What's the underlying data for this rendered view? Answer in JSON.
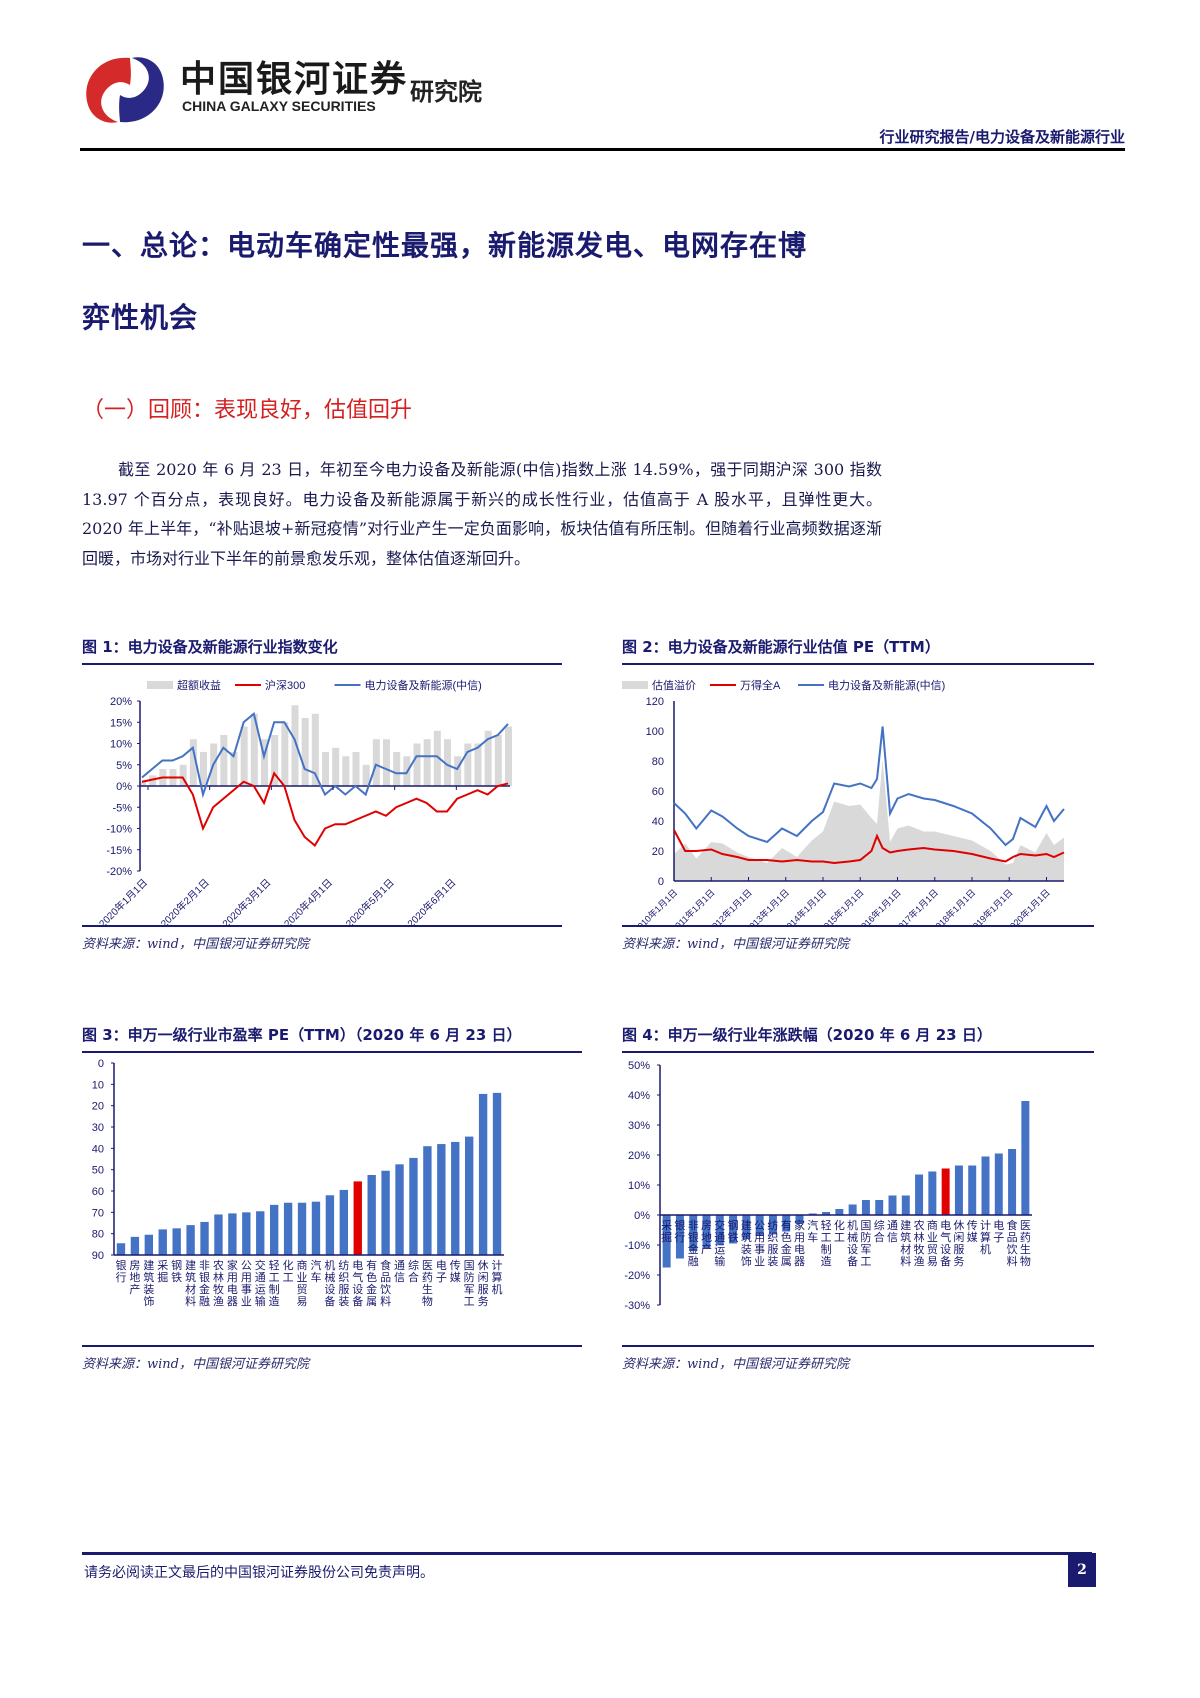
{
  "header": {
    "brand_cn": "中国银河证券",
    "brand_en": "CHINA GALAXY SECURITIES",
    "institute": "研究院",
    "report_type": "行业研究报告/电力设备及新能源行业"
  },
  "section": {
    "title_line1": "一、总论：电动车确定性最强，新能源发电、电网存在博",
    "title_line2": "弈性机会",
    "subtitle": "（一）回顾：表现良好，估值回升",
    "paragraph": "截至 2020 年 6 月 23 日，年初至今电力设备及新能源(中信)指数上涨 14.59%，强于同期沪深 300 指数 13.97 个百分点，表现良好。电力设备及新能源属于新兴的成长性行业，估值高于 A 股水平，且弹性更大。2020 年上半年，“补贴退坡+新冠疫情”对行业产生一定负面影响，板块估值有所压制。但随着行业高频数据逐渐回暖，市场对行业下半年的前景愈发乐观，整体估值逐渐回升。"
  },
  "figures": {
    "fig1": {
      "title": "图 1：电力设备及新能源行业指数变化",
      "source": "资料来源：wind，中国银河证券研究院"
    },
    "fig2": {
      "title": "图 2：电力设备及新能源行业估值 PE（TTM）",
      "source": "资料来源：wind，中国银河证券研究院"
    },
    "fig3": {
      "title": "图 3：申万一级行业市盈率 PE（TTM）（2020 年 6 月 23 日）",
      "source": "资料来源：wind，中国银河证券研究院"
    },
    "fig4": {
      "title": "图 4：申万一级行业年涨跌幅（2020 年 6 月 23 日）",
      "source": "资料来源：wind，中国银河证券研究院"
    }
  },
  "footer": {
    "disclaimer": "请务必阅读正文最后的中国银河证券股份公司免责声明。",
    "page": "2"
  },
  "colors": {
    "navy": "#1a1a6e",
    "red": "#e00000",
    "blue": "#4472c4",
    "gray": "#d9d9d9"
  },
  "chart_data": [
    {
      "type": "line",
      "title": "电力设备及新能源行业指数变化",
      "legend": [
        "超额收益",
        "沪深300",
        "电力设备及新能源(中信)"
      ],
      "legend_position": "top",
      "ylim": [
        -20,
        20
      ],
      "yticks": [
        "20%",
        "15%",
        "10%",
        "5%",
        "0%",
        "-5%",
        "-10%",
        "-15%",
        "-20%"
      ],
      "xticks": [
        "2020年1月1日",
        "2020年2月1日",
        "2020年3月1日",
        "2020年4月1日",
        "2020年5月1日",
        "2020年6月1日"
      ],
      "x": [
        "01-02",
        "01-07",
        "01-10",
        "01-15",
        "01-20",
        "01-23",
        "02-03",
        "02-05",
        "02-10",
        "02-14",
        "02-20",
        "02-25",
        "02-28",
        "03-03",
        "03-05",
        "03-10",
        "03-13",
        "03-17",
        "03-20",
        "03-24",
        "03-27",
        "03-31",
        "04-03",
        "04-09",
        "04-15",
        "04-20",
        "04-24",
        "04-30",
        "05-08",
        "05-15",
        "05-22",
        "05-29",
        "06-05",
        "06-10",
        "06-15",
        "06-19",
        "06-23"
      ],
      "series": [
        {
          "name": "电力设备及新能源(中信)",
          "values": [
            2,
            4,
            6,
            6,
            7,
            9,
            -2,
            5,
            9,
            7,
            15,
            17,
            7,
            15,
            15,
            11,
            4,
            3,
            -2,
            0,
            -2,
            0,
            -2,
            5,
            4,
            3,
            3,
            7,
            7,
            7,
            5,
            4,
            8,
            9,
            11,
            12,
            14.6
          ]
        },
        {
          "name": "沪深300",
          "values": [
            1,
            1.5,
            2,
            2,
            2,
            -2,
            -10,
            -5,
            -3,
            -1,
            1,
            0,
            -4,
            3,
            0,
            -8,
            -12,
            -14,
            -10,
            -9,
            -9,
            -8,
            -7,
            -6,
            -7,
            -5,
            -4,
            -3,
            -4,
            -6,
            -6,
            -3,
            -2,
            -1,
            -2,
            0,
            0.6
          ]
        },
        {
          "name": "超额收益",
          "values": [
            1,
            2.5,
            4,
            4,
            5,
            11,
            8,
            10,
            12,
            8,
            14,
            17,
            11,
            12,
            15,
            19,
            16,
            17,
            8,
            9,
            7,
            8,
            5,
            11,
            11,
            8,
            7,
            10,
            11,
            13,
            11,
            7,
            10,
            10,
            13,
            12,
            14
          ]
        }
      ]
    },
    {
      "type": "line",
      "title": "电力设备及新能源行业估值 PE（TTM）",
      "legend": [
        "估值溢价",
        "万得全A",
        "电力设备及新能源(中信)"
      ],
      "legend_position": "top",
      "ylim": [
        0,
        120
      ],
      "yticks": [
        0,
        20,
        40,
        60,
        80,
        100,
        120
      ],
      "xticks": [
        "2010年1月1日",
        "2011年1月1日",
        "2012年1月1日",
        "2013年1月1日",
        "2014年1月1日",
        "2015年1月1日",
        "2016年1月1日",
        "2017年1月1日",
        "2018年1月1日",
        "2019年1月1日",
        "2020年1月1日"
      ],
      "x": [
        2010.0,
        2010.3,
        2010.6,
        2011.0,
        2011.3,
        2011.7,
        2012.0,
        2012.5,
        2012.9,
        2013.3,
        2013.7,
        2014.0,
        2014.3,
        2014.7,
        2015.0,
        2015.3,
        2015.45,
        2015.6,
        2015.8,
        2016.0,
        2016.3,
        2016.7,
        2017.0,
        2017.5,
        2018.0,
        2018.5,
        2018.9,
        2019.1,
        2019.3,
        2019.7,
        2020.0,
        2020.2,
        2020.47
      ],
      "series": [
        {
          "name": "电力设备及新能源(中信)",
          "values": [
            52,
            45,
            35,
            47,
            43,
            35,
            30,
            26,
            35,
            30,
            40,
            46,
            65,
            63,
            65,
            62,
            68,
            103,
            45,
            55,
            58,
            55,
            54,
            50,
            45,
            35,
            24,
            28,
            42,
            36,
            50,
            40,
            48
          ]
        },
        {
          "name": "万得全A",
          "values": [
            34,
            20,
            20,
            21,
            18,
            16,
            14,
            14,
            13,
            14,
            13,
            13,
            12,
            13,
            14,
            20,
            30,
            22,
            19,
            20,
            21,
            22,
            21,
            20,
            18,
            15,
            13,
            16,
            18,
            17,
            18,
            16,
            19
          ]
        },
        {
          "name": "估值溢价",
          "values": [
            18,
            25,
            15,
            26,
            25,
            19,
            16,
            12,
            22,
            16,
            27,
            33,
            53,
            50,
            51,
            42,
            38,
            81,
            26,
            35,
            37,
            33,
            33,
            30,
            27,
            20,
            11,
            12,
            24,
            19,
            32,
            24,
            29
          ]
        }
      ]
    },
    {
      "type": "bar",
      "title": "申万一级行业市盈率 PE（TTM）（2020 年 6 月 23 日）",
      "ylim": [
        0,
        90
      ],
      "yticks": [
        0,
        10,
        20,
        30,
        40,
        50,
        60,
        70,
        80,
        90
      ],
      "categories": [
        "银行",
        "房地产",
        "建筑装饰",
        "采掘",
        "钢铁",
        "建筑材料",
        "非银金融",
        "农林牧渔",
        "家用电器",
        "公用事业",
        "交通运输",
        "轻工制造",
        "化工",
        "商业贸易",
        "汽车",
        "机械设备",
        "纺织服装",
        "电气设备",
        "有色金属",
        "食品饮料",
        "通信",
        "综合",
        "医药生物",
        "电子",
        "传媒",
        "国防军工",
        "休闲服务",
        "计算机"
      ],
      "values": [
        5.5,
        8.5,
        9.5,
        12,
        12.5,
        14,
        15.5,
        19,
        19.5,
        20,
        20.5,
        23.5,
        24.5,
        24.5,
        25,
        28,
        30.5,
        34.5,
        37.5,
        39.5,
        42.5,
        45.5,
        51,
        52,
        53,
        55.5,
        75.5,
        76
      ],
      "highlight": "电气设备"
    },
    {
      "type": "bar",
      "title": "申万一级行业年涨跌幅（2020 年 6 月 23 日）",
      "ylim": [
        -30,
        50
      ],
      "yticks": [
        "50%",
        "40%",
        "30%",
        "20%",
        "10%",
        "0%",
        "-10%",
        "-20%",
        "-30%"
      ],
      "categories": [
        "采掘",
        "银行",
        "非银金融",
        "房地产",
        "交通运输",
        "钢铁",
        "建筑装饰",
        "公用事业",
        "纺织服装",
        "有色金属",
        "家用电器",
        "汽车",
        "轻工制造",
        "化工",
        "机械设备",
        "国防军工",
        "综合",
        "通信",
        "建筑材料",
        "农林牧渔",
        "商业贸易",
        "电气设备",
        "休闲服务",
        "传媒",
        "计算机",
        "电子",
        "食品饮料",
        "医药生物"
      ],
      "values": [
        -17.5,
        -14.5,
        -12,
        -11,
        -10,
        -9.5,
        -8,
        -7,
        -6.5,
        -5.5,
        -3,
        0.5,
        1,
        2,
        3.5,
        5,
        5,
        6.5,
        6.5,
        13.5,
        14.5,
        15.5,
        16.5,
        16.5,
        19.5,
        20.5,
        22,
        38
      ],
      "highlight": "电气设备"
    }
  ]
}
